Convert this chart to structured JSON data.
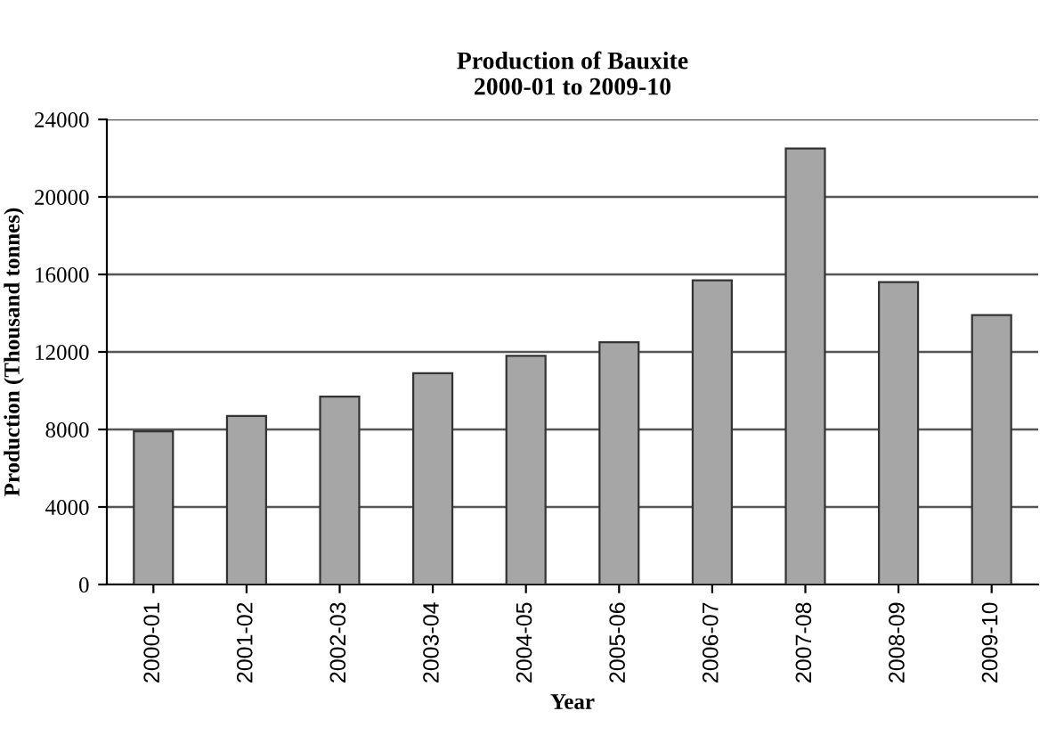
{
  "chart_data": {
    "type": "bar",
    "title": "Production of Bauxite\n2000-01 to 2009-10",
    "xlabel": "Year",
    "ylabel": "Production (Thousand tonnes)",
    "categories": [
      "2000-01",
      "2001-02",
      "2002-03",
      "2003-04",
      "2004-05",
      "2005-06",
      "2006-07",
      "2007-08",
      "2008-09",
      "2009-10"
    ],
    "values": [
      7900,
      8700,
      9700,
      10900,
      11800,
      12500,
      15700,
      22500,
      15600,
      13900
    ],
    "color": "#a6a6a6",
    "ylim": [
      0,
      24000
    ],
    "yticks": [
      0,
      4000,
      8000,
      12000,
      16000,
      20000,
      24000
    ],
    "grid": "y",
    "legend": false
  }
}
